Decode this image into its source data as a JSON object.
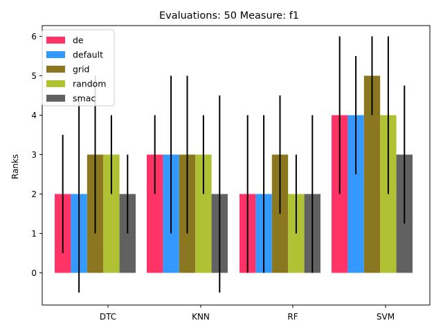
{
  "chart_data": {
    "type": "bar",
    "title": "Evaluations: 50 Measure: f1",
    "xlabel": "",
    "ylabel": "Ranks",
    "categories": [
      "DTC",
      "KNN",
      "RF",
      "SVM"
    ],
    "ylim": [
      -0.75,
      6.32
    ],
    "yticks": [
      0,
      1,
      2,
      3,
      4,
      5,
      6
    ],
    "grid": false,
    "legend": "top-left",
    "series": [
      {
        "name": "de",
        "color": "#ff3366",
        "values": [
          2,
          3,
          2,
          4
        ],
        "err_low": [
          0.5,
          2.0,
          0.0,
          2.0
        ],
        "err_high": [
          3.5,
          4.0,
          4.0,
          6.0
        ]
      },
      {
        "name": "default",
        "color": "#3399ff",
        "values": [
          2,
          3,
          2,
          4
        ],
        "err_low": [
          -0.5,
          1.0,
          0.0,
          2.5
        ],
        "err_high": [
          4.5,
          5.0,
          4.0,
          5.5
        ]
      },
      {
        "name": "grid",
        "color": "#8b7720",
        "values": [
          3,
          3,
          3,
          5
        ],
        "err_low": [
          1.0,
          1.0,
          1.5,
          4.0
        ],
        "err_high": [
          5.0,
          5.0,
          4.5,
          6.0
        ]
      },
      {
        "name": "random",
        "color": "#b0c233",
        "values": [
          3,
          3,
          2,
          4
        ],
        "err_low": [
          2.0,
          2.0,
          1.0,
          2.0
        ],
        "err_high": [
          4.0,
          4.0,
          3.0,
          6.0
        ]
      },
      {
        "name": "smac",
        "color": "#616161",
        "values": [
          2,
          2,
          2,
          3
        ],
        "err_low": [
          1.0,
          -0.5,
          0.0,
          1.25
        ],
        "err_high": [
          3.0,
          4.5,
          4.0,
          4.75
        ]
      }
    ]
  }
}
